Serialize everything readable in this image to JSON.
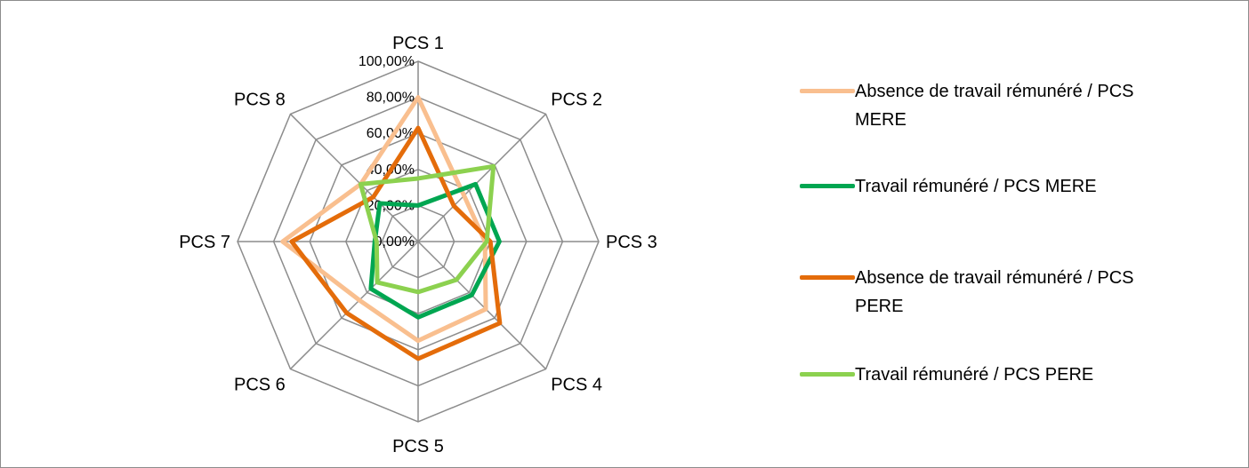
{
  "chart_data": {
    "type": "radar",
    "categories": [
      "PCS 1",
      "PCS 2",
      "PCS 3",
      "PCS 4",
      "PCS 5",
      "PCS 6",
      "PCS 7",
      "PCS 8"
    ],
    "ticks": [
      "0,00%",
      "20,00%",
      "40,00%",
      "60,00%",
      "80,00%",
      "100,00%"
    ],
    "rlim": [
      0,
      100
    ],
    "grid": true,
    "legend_position": "right",
    "series": [
      {
        "name": "Absence de travail rémunéré  / PCS MERE",
        "color": "#f9bf8f",
        "values": [
          80,
          36,
          37,
          53,
          55,
          46,
          75,
          45
        ]
      },
      {
        "name": "Travail rémunéré / PCS MERE",
        "color": "#00a651",
        "values": [
          20,
          45,
          45,
          42,
          42,
          37,
          24,
          30
        ]
      },
      {
        "name": "Absence de travail rémunéré / PCS PERE",
        "color": "#e46c0a",
        "values": [
          63,
          28,
          40,
          64,
          65,
          56,
          70,
          35
        ]
      },
      {
        "name": "Travail rémunéré / PCS PERE",
        "color": "#8cd14f",
        "values": [
          35,
          59,
          38,
          30,
          28,
          32,
          23,
          45
        ]
      }
    ]
  }
}
